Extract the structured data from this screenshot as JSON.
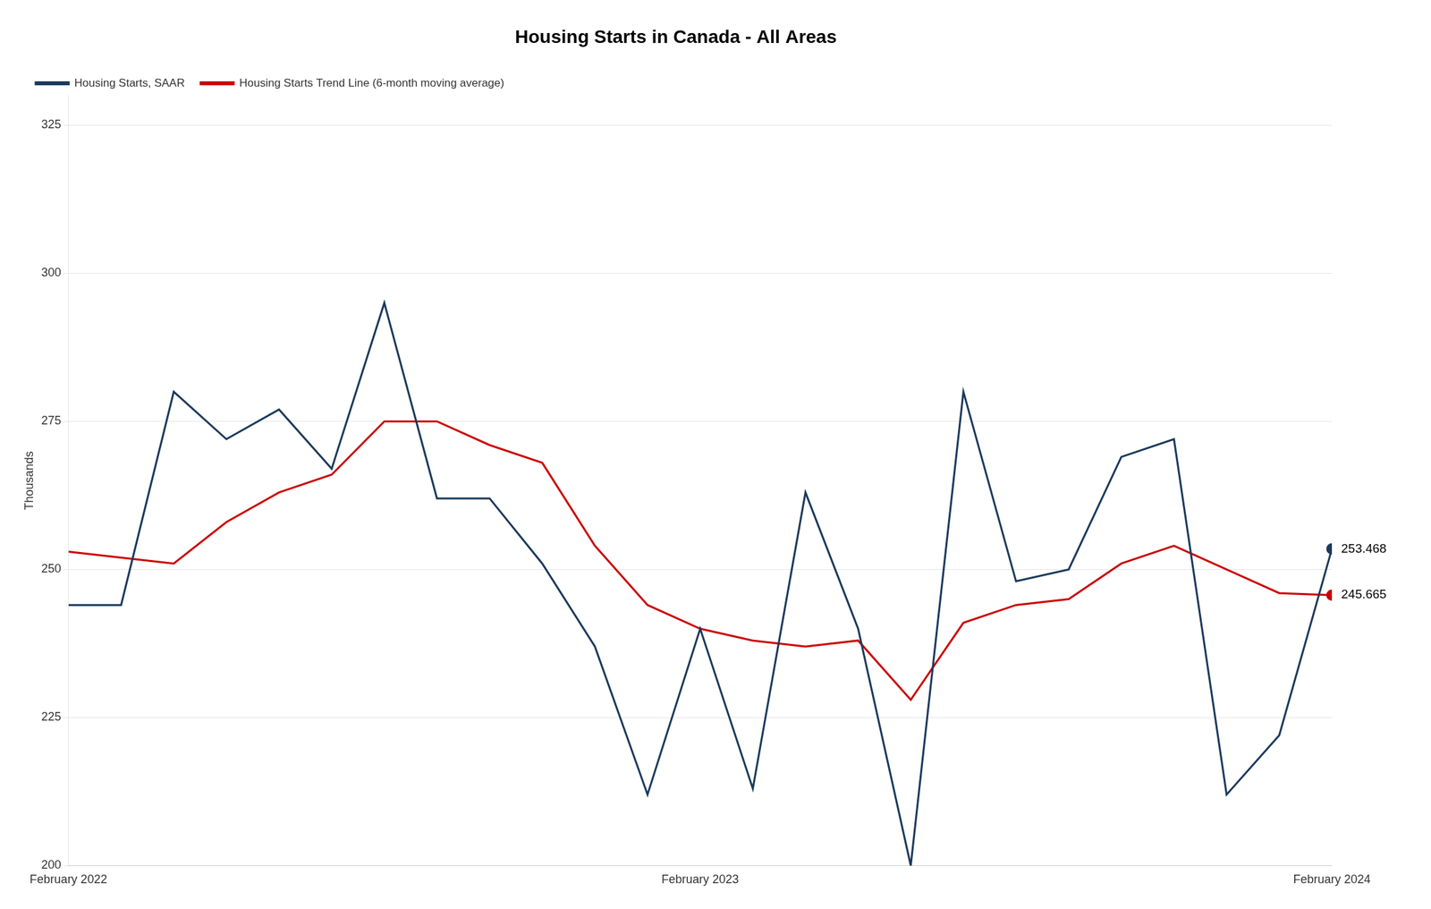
{
  "chart_data": {
    "type": "line",
    "title": "Housing Starts in Canada - All Areas",
    "ylabel": "Thousands",
    "categories": [
      "February 2022",
      null,
      null,
      null,
      null,
      null,
      null,
      null,
      null,
      null,
      null,
      null,
      "February 2023",
      null,
      null,
      null,
      null,
      null,
      null,
      null,
      null,
      null,
      null,
      null,
      "February 2024"
    ],
    "series": [
      {
        "name": "Housing Starts, SAAR",
        "color": "#1B3A5C",
        "values": [
          244,
          244,
          280,
          272,
          277,
          267,
          295,
          262,
          262,
          251,
          237,
          212,
          240,
          213,
          263,
          240,
          200,
          280,
          248,
          250,
          269,
          272,
          212,
          222,
          253.468
        ]
      },
      {
        "name": "Housing Starts Trend Line (6-month moving average)",
        "color": "#CC0000",
        "values": [
          253,
          252,
          251,
          258,
          263,
          266,
          275,
          275,
          271,
          268,
          254,
          244,
          240,
          238,
          237,
          238,
          228,
          241,
          244,
          245,
          251,
          254,
          250,
          246,
          245.665
        ]
      }
    ],
    "annotations": [
      {
        "text": "253.468",
        "x": "February 2024",
        "y": 253.468
      },
      {
        "text": "245.665",
        "x": "February 2024",
        "y": 245.665
      }
    ],
    "ylim": [
      200,
      330
    ],
    "yticks": [
      200,
      225,
      250,
      275,
      300,
      325
    ],
    "grid": true,
    "legend": "upper left"
  }
}
